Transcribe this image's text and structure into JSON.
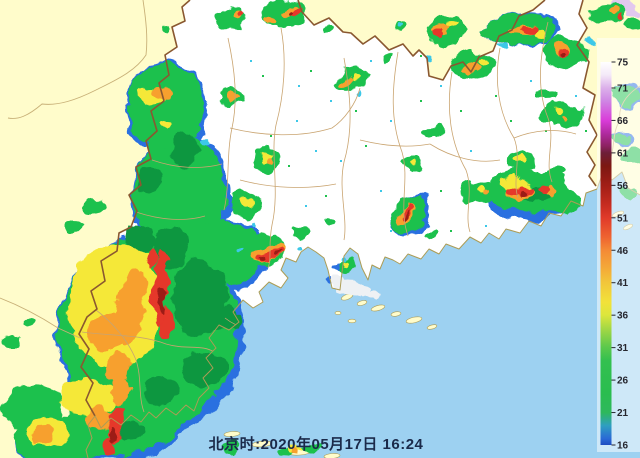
{
  "timestamp": {
    "label": "北京时:2020年05月17日 16:24"
  },
  "palette": {
    "sea": "#9dd1f1",
    "land_out": "#fffccb",
    "land_in": "#ffffff",
    "coast": "#ac9c55",
    "border_prov": "#8a5830",
    "border_county": "#c9a470",
    "neighbor": "#c8b078",
    "text": "#1b2a4a",
    "cb_text": "#26262e",
    "cb_panel": "rgba(255,255,255,0.5)"
  },
  "colorbar": {
    "min": 16,
    "max": 75,
    "ticks": [
      75,
      71,
      66,
      61,
      56,
      51,
      46,
      41,
      36,
      31,
      26,
      21,
      16
    ],
    "gradient": [
      {
        "at": 75,
        "color": "#ffffff"
      },
      {
        "at": 73,
        "color": "#f4e9f8"
      },
      {
        "at": 71,
        "color": "#dcb0ea"
      },
      {
        "at": 69,
        "color": "#cf86e4"
      },
      {
        "at": 66,
        "color": "#d93cd9"
      },
      {
        "at": 64,
        "color": "#b02ba0"
      },
      {
        "at": 62,
        "color": "#8c2160"
      },
      {
        "at": 61,
        "color": "#6d1f38"
      },
      {
        "at": 59,
        "color": "#7c1812"
      },
      {
        "at": 56,
        "color": "#a11e16"
      },
      {
        "at": 53,
        "color": "#c62c20"
      },
      {
        "at": 51,
        "color": "#e03a2a"
      },
      {
        "at": 48,
        "color": "#ee6430"
      },
      {
        "at": 46,
        "color": "#f48a36"
      },
      {
        "at": 43,
        "color": "#f4ac38"
      },
      {
        "at": 41,
        "color": "#f2c63a"
      },
      {
        "at": 38,
        "color": "#f2e23a"
      },
      {
        "at": 36,
        "color": "#dce63c"
      },
      {
        "at": 34,
        "color": "#a6d844"
      },
      {
        "at": 31,
        "color": "#5ac84c"
      },
      {
        "at": 29,
        "color": "#33c04f"
      },
      {
        "at": 24,
        "color": "#2abd4f"
      },
      {
        "at": 21,
        "color": "#2eb85c"
      },
      {
        "at": 19,
        "color": "#2f9fc0"
      },
      {
        "at": 17,
        "color": "#2a6ad6"
      },
      {
        "at": 16,
        "color": "#1e4cc0"
      }
    ]
  },
  "echo_palette": {
    "b": "#2a6fe0",
    "c": "#3cc8e8",
    "g": "#1ec14e",
    "G": "#0e9740",
    "y": "#f5e838",
    "o": "#f7a02e",
    "r": "#e5372b",
    "R": "#9c1b12",
    "w": "#eef1f4",
    "m": "#e2c8ee"
  },
  "echo_format": [
    "x",
    "y",
    "rx",
    "ry",
    "rot",
    "color_key"
  ],
  "echoes": [
    [
      150,
      335,
      94,
      102,
      0,
      "b"
    ],
    [
      182,
      195,
      50,
      64,
      0,
      "b"
    ],
    [
      167,
      108,
      42,
      47,
      0,
      "b"
    ],
    [
      226,
      255,
      46,
      36,
      0,
      "b"
    ],
    [
      118,
      430,
      58,
      30,
      0,
      "b"
    ],
    [
      60,
      442,
      47,
      26,
      0,
      "b"
    ],
    [
      522,
      30,
      38,
      18,
      0,
      "b"
    ],
    [
      530,
      198,
      44,
      23,
      0,
      "b"
    ],
    [
      410,
      215,
      17,
      23,
      25,
      "b"
    ],
    [
      624,
      138,
      10,
      7,
      0,
      "b"
    ],
    [
      628,
      95,
      17,
      12,
      0,
      "b"
    ],
    [
      336,
      268,
      5,
      4,
      0,
      "b"
    ],
    [
      330,
      280,
      4,
      3,
      0,
      "b"
    ],
    [
      352,
      288,
      16,
      9,
      0,
      "w"
    ],
    [
      368,
      296,
      11,
      5,
      0,
      "w"
    ],
    [
      340,
      282,
      8,
      5,
      0,
      "w"
    ],
    [
      622,
      6,
      14,
      7,
      0,
      "m"
    ],
    [
      636,
      12,
      8,
      5,
      0,
      "m"
    ],
    [
      148,
      333,
      90,
      98,
      0,
      "g"
    ],
    [
      180,
      193,
      46,
      60,
      0,
      "g"
    ],
    [
      166,
      106,
      39,
      43,
      0,
      "g"
    ],
    [
      222,
      253,
      43,
      33,
      0,
      "g"
    ],
    [
      116,
      428,
      56,
      28,
      0,
      "g"
    ],
    [
      58,
      440,
      45,
      25,
      0,
      "g"
    ],
    [
      33,
      408,
      30,
      24,
      0,
      "g"
    ],
    [
      12,
      342,
      9,
      7,
      0,
      "g"
    ],
    [
      30,
      322,
      6,
      5,
      0,
      "g"
    ],
    [
      95,
      205,
      11,
      8,
      0,
      "g"
    ],
    [
      74,
      228,
      7,
      5,
      0,
      "g"
    ],
    [
      232,
      18,
      17,
      13,
      0,
      "g"
    ],
    [
      282,
      15,
      23,
      15,
      0,
      "g"
    ],
    [
      165,
      28,
      6,
      4,
      0,
      "g"
    ],
    [
      230,
      96,
      11,
      9,
      0,
      "g"
    ],
    [
      268,
      160,
      15,
      12,
      0,
      "g"
    ],
    [
      245,
      205,
      17,
      13,
      0,
      "g"
    ],
    [
      262,
      250,
      22,
      16,
      0,
      "g"
    ],
    [
      240,
      238,
      14,
      12,
      0,
      "g"
    ],
    [
      300,
      232,
      8,
      6,
      0,
      "g"
    ],
    [
      352,
      80,
      19,
      10,
      -15,
      "g"
    ],
    [
      390,
      58,
      6,
      4,
      0,
      "g"
    ],
    [
      402,
      26,
      7,
      5,
      0,
      "g"
    ],
    [
      328,
      27,
      6,
      4,
      0,
      "g"
    ],
    [
      412,
      162,
      11,
      8,
      0,
      "g"
    ],
    [
      433,
      132,
      8,
      6,
      0,
      "g"
    ],
    [
      445,
      30,
      19,
      15,
      0,
      "g"
    ],
    [
      472,
      65,
      23,
      13,
      0,
      "g"
    ],
    [
      520,
      30,
      36,
      17,
      0,
      "g"
    ],
    [
      565,
      52,
      21,
      16,
      0,
      "g"
    ],
    [
      608,
      14,
      17,
      10,
      0,
      "g"
    ],
    [
      634,
      25,
      9,
      6,
      0,
      "g"
    ],
    [
      545,
      95,
      9,
      6,
      0,
      "g"
    ],
    [
      562,
      115,
      21,
      13,
      0,
      "g"
    ],
    [
      522,
      162,
      15,
      10,
      0,
      "g"
    ],
    [
      480,
      192,
      17,
      11,
      0,
      "g"
    ],
    [
      555,
      172,
      8,
      5,
      0,
      "g"
    ],
    [
      528,
      190,
      42,
      20,
      0,
      "g"
    ],
    [
      560,
      200,
      21,
      14,
      0,
      "g"
    ],
    [
      408,
      214,
      15,
      21,
      25,
      "g"
    ],
    [
      432,
      232,
      7,
      5,
      0,
      "g"
    ],
    [
      328,
      222,
      6,
      4,
      0,
      "g"
    ],
    [
      346,
      266,
      10,
      8,
      0,
      "g"
    ],
    [
      625,
      95,
      15,
      10,
      0,
      "g"
    ],
    [
      632,
      155,
      11,
      8,
      0,
      "g"
    ],
    [
      630,
      192,
      10,
      6,
      0,
      "g"
    ],
    [
      622,
      138,
      8,
      5,
      0,
      "g"
    ],
    [
      232,
      448,
      11,
      6,
      0,
      "g"
    ],
    [
      310,
      447,
      9,
      5,
      0,
      "g"
    ],
    [
      286,
      452,
      8,
      4,
      0,
      "g"
    ],
    [
      200,
      298,
      28,
      38,
      0,
      "G"
    ],
    [
      172,
      248,
      18,
      22,
      0,
      "G"
    ],
    [
      140,
      238,
      16,
      13,
      0,
      "G"
    ],
    [
      205,
      368,
      22,
      18,
      0,
      "G"
    ],
    [
      160,
      390,
      18,
      14,
      0,
      "G"
    ],
    [
      185,
      150,
      14,
      18,
      0,
      "G"
    ],
    [
      150,
      180,
      12,
      14,
      0,
      "G"
    ],
    [
      225,
      320,
      16,
      12,
      0,
      "G"
    ],
    [
      130,
      430,
      14,
      10,
      0,
      "G"
    ],
    [
      535,
      194,
      16,
      8,
      0,
      "G"
    ],
    [
      115,
      305,
      46,
      62,
      0,
      "y"
    ],
    [
      140,
      260,
      12,
      10,
      0,
      "y"
    ],
    [
      88,
      398,
      27,
      20,
      0,
      "y"
    ],
    [
      48,
      432,
      21,
      14,
      0,
      "y"
    ],
    [
      150,
      98,
      13,
      9,
      0,
      "y"
    ],
    [
      168,
      122,
      7,
      5,
      0,
      "y"
    ],
    [
      266,
      158,
      6,
      5,
      0,
      "y"
    ],
    [
      248,
      202,
      6,
      4,
      0,
      "y"
    ],
    [
      357,
      78,
      5,
      3,
      -15,
      "y"
    ],
    [
      412,
      161,
      4,
      3,
      0,
      "y"
    ],
    [
      452,
      25,
      5,
      4,
      0,
      "y"
    ],
    [
      480,
      60,
      6,
      4,
      0,
      "y"
    ],
    [
      540,
      35,
      6,
      4,
      0,
      "y"
    ],
    [
      558,
      112,
      5,
      4,
      0,
      "y"
    ],
    [
      520,
      160,
      6,
      4,
      0,
      "y"
    ],
    [
      478,
      190,
      5,
      4,
      0,
      "y"
    ],
    [
      515,
      186,
      14,
      8,
      0,
      "y"
    ],
    [
      296,
      450,
      7,
      3.5,
      0,
      "y"
    ],
    [
      344,
      264,
      4,
      3,
      0,
      "y"
    ],
    [
      131,
      308,
      14,
      38,
      12,
      "o"
    ],
    [
      105,
      332,
      20,
      16,
      0,
      "o"
    ],
    [
      118,
      368,
      12,
      18,
      0,
      "o"
    ],
    [
      100,
      418,
      13,
      11,
      0,
      "o"
    ],
    [
      42,
      436,
      10,
      7,
      0,
      "o"
    ],
    [
      160,
      94,
      10,
      6,
      0,
      "o"
    ],
    [
      268,
      252,
      17,
      8,
      -12,
      "o"
    ],
    [
      120,
      390,
      9,
      12,
      0,
      "o"
    ],
    [
      238,
      13,
      7,
      5,
      0,
      "o"
    ],
    [
      288,
      10,
      8,
      5,
      0,
      "o"
    ],
    [
      270,
      22,
      6,
      4,
      0,
      "o"
    ],
    [
      231,
      97,
      4.5,
      4,
      0,
      "o"
    ],
    [
      270,
      162,
      3.5,
      3,
      0,
      "o"
    ],
    [
      345,
      82,
      8,
      4,
      -15,
      "o"
    ],
    [
      440,
      28,
      8,
      6,
      0,
      "o"
    ],
    [
      470,
      68,
      8,
      5,
      0,
      "o"
    ],
    [
      524,
      30,
      13,
      5,
      0,
      "o"
    ],
    [
      562,
      50,
      8,
      6,
      0,
      "o"
    ],
    [
      612,
      12,
      5,
      4,
      0,
      "o"
    ],
    [
      566,
      118,
      3.5,
      3,
      0,
      "o"
    ],
    [
      483,
      194,
      3,
      3,
      0,
      "o"
    ],
    [
      518,
      193,
      14,
      7,
      0,
      "o"
    ],
    [
      552,
      192,
      7,
      5,
      0,
      "o"
    ],
    [
      406,
      214,
      6,
      13,
      25,
      "o"
    ],
    [
      296,
      452,
      4,
      3,
      0,
      "o"
    ],
    [
      160,
      290,
      7,
      40,
      4,
      "r"
    ],
    [
      167,
      325,
      7,
      16,
      0,
      "r"
    ],
    [
      116,
      424,
      8,
      20,
      8,
      "r"
    ],
    [
      108,
      448,
      6,
      9,
      0,
      "r"
    ],
    [
      270,
      254,
      13,
      5,
      -12,
      "r"
    ],
    [
      152,
      258,
      5,
      11,
      0,
      "r"
    ],
    [
      242,
      11,
      3.5,
      3,
      0,
      "r"
    ],
    [
      296,
      13,
      5,
      4,
      0,
      "r"
    ],
    [
      438,
      32,
      4,
      4,
      0,
      "r"
    ],
    [
      528,
      30,
      9,
      4,
      0,
      "r"
    ],
    [
      564,
      53,
      5,
      5,
      0,
      "r"
    ],
    [
      512,
      191,
      8,
      5,
      0,
      "r"
    ],
    [
      524,
      191,
      7,
      5,
      0,
      "r"
    ],
    [
      545,
      190,
      6,
      4,
      0,
      "r"
    ],
    [
      407,
      211,
      4,
      9,
      25,
      "r"
    ],
    [
      620,
      16,
      3,
      3,
      0,
      "r"
    ],
    [
      162,
      300,
      3.5,
      14,
      0,
      "R"
    ],
    [
      113,
      434,
      4,
      9,
      0,
      "R"
    ],
    [
      407,
      215,
      2,
      5,
      25,
      "R"
    ],
    [
      524,
      193,
      3,
      3,
      0,
      "R"
    ],
    [
      564,
      55,
      2.5,
      2.5,
      0,
      "R"
    ],
    [
      263,
      256,
      3,
      2.5,
      0,
      "R"
    ],
    [
      277,
      253,
      3,
      2,
      0,
      "R"
    ],
    [
      290,
      12,
      2.5,
      2.5,
      0,
      "R"
    ],
    [
      205,
      140,
      5,
      4,
      0,
      "c"
    ],
    [
      240,
      250,
      4,
      3,
      0,
      "c"
    ],
    [
      300,
      250,
      3,
      3,
      0,
      "c"
    ],
    [
      430,
      60,
      4,
      3,
      0,
      "c"
    ],
    [
      500,
      48,
      4,
      3,
      0,
      "c"
    ],
    [
      590,
      40,
      3,
      3,
      0,
      "c"
    ],
    [
      360,
      95,
      3,
      3,
      0,
      "c"
    ],
    [
      255,
      225,
      3,
      3,
      0,
      "c"
    ],
    [
      400,
      25,
      3,
      2,
      0,
      "c"
    ],
    [
      342,
      258,
      3,
      3,
      0,
      "c"
    ]
  ],
  "speckle_format": [
    "x",
    "y",
    "color_key"
  ],
  "speckles": [
    [
      250,
      60,
      "c"
    ],
    [
      262,
      75,
      "g"
    ],
    [
      298,
      85,
      "c"
    ],
    [
      310,
      70,
      "g"
    ],
    [
      330,
      100,
      "c"
    ],
    [
      355,
      110,
      "g"
    ],
    [
      296,
      120,
      "c"
    ],
    [
      270,
      135,
      "g"
    ],
    [
      315,
      150,
      "c"
    ],
    [
      288,
      165,
      "g"
    ],
    [
      340,
      160,
      "c"
    ],
    [
      365,
      145,
      "g"
    ],
    [
      390,
      120,
      "c"
    ],
    [
      420,
      100,
      "g"
    ],
    [
      440,
      85,
      "c"
    ],
    [
      460,
      110,
      "g"
    ],
    [
      305,
      205,
      "c"
    ],
    [
      325,
      195,
      "g"
    ],
    [
      380,
      190,
      "c"
    ],
    [
      440,
      190,
      "g"
    ],
    [
      470,
      150,
      "c"
    ],
    [
      495,
      95,
      "g"
    ],
    [
      530,
      80,
      "c"
    ],
    [
      545,
      130,
      "g"
    ],
    [
      575,
      95,
      "c"
    ],
    [
      585,
      130,
      "g"
    ],
    [
      420,
      55,
      "g"
    ],
    [
      370,
      60,
      "c"
    ],
    [
      450,
      230,
      "g"
    ],
    [
      485,
      225,
      "c"
    ],
    [
      510,
      120,
      "g"
    ],
    [
      390,
      230,
      "c"
    ]
  ]
}
